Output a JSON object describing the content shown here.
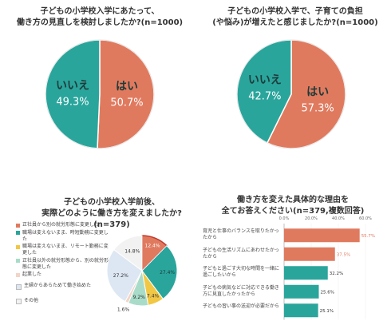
{
  "chart_data": [
    {
      "type": "pie",
      "title": "子どもの小学校入学にあたって、\n働き方の見直しを検討しましたか?(n=1000)",
      "slices": [
        {
          "label": "はい",
          "value": 50.7,
          "display": "50.7%",
          "color": "#e07a5f"
        },
        {
          "label": "いいえ",
          "value": 49.3,
          "display": "49.3%",
          "color": "#2aa59c"
        }
      ]
    },
    {
      "type": "pie",
      "title": "子どもの小学校入学で、子育ての負担\n(や悩み)が増えたと感じましたか?(n=1000)",
      "slices": [
        {
          "label": "はい",
          "value": 57.3,
          "display": "57.3%",
          "color": "#e07a5f"
        },
        {
          "label": "いいえ",
          "value": 42.7,
          "display": "42.7%",
          "color": "#2aa59c"
        }
      ]
    },
    {
      "type": "pie",
      "title": "子どもの小学校入学前後、\n実際どのように働き方を変えましたか?(n=379)",
      "slices": [
        {
          "label": "正社員から別の就労形態に変更した",
          "value": 12.4,
          "display": "12.4%",
          "color": "#e07a5f"
        },
        {
          "label": "職場は変えないまま、時短勤務に変更した",
          "value": 27.4,
          "display": "27.4%",
          "color": "#2aa59c"
        },
        {
          "label": "職場は変えないまま、リモート勤務に変更した",
          "value": 7.4,
          "display": "7.4%",
          "color": "#f2c744"
        },
        {
          "label": "正社員以外の就労形態から、別の就労形態に変更した",
          "value": 9.2,
          "display": "9.2%",
          "color": "#a8dcc9"
        },
        {
          "label": "起業した",
          "value": 1.6,
          "display": "1.6%",
          "color": "#f3d4c8"
        },
        {
          "label": "主婦からあらためて働き始めた",
          "value": 27.2,
          "display": "27.2%",
          "color": "#dde7f3"
        },
        {
          "label": "その他",
          "value": 14.8,
          "display": "14.8%",
          "color": "#f2f2f2"
        }
      ]
    },
    {
      "type": "bar",
      "title": "働き方を変えた具体的な理由を\n全てお答えください(n=379,複数回答)",
      "xlim": [
        0,
        60
      ],
      "ticks": [
        "0.0%",
        "20.0%",
        "40.0%",
        "60.0%"
      ],
      "categories": [
        "育児と仕事のバランスを取りたかったから",
        "子どもの生活リズムにあわせたかったから",
        "子どもと過ごす大切な時間を一緒に過ごしたいから",
        "子どもの病気などに対応できる働き方に見直したかったから",
        "子どもの習い事の送迎が必要だから"
      ],
      "values": [
        55.7,
        37.5,
        32.2,
        25.6,
        25.1
      ],
      "value_labels": [
        "55.7%",
        "37.5%",
        "32.2%",
        "25.6%",
        "25.1%"
      ],
      "colors": [
        "#e07a5f",
        "#e07a5f",
        "#2aa59c",
        "#2aa59c",
        "#2aa59c"
      ]
    }
  ]
}
